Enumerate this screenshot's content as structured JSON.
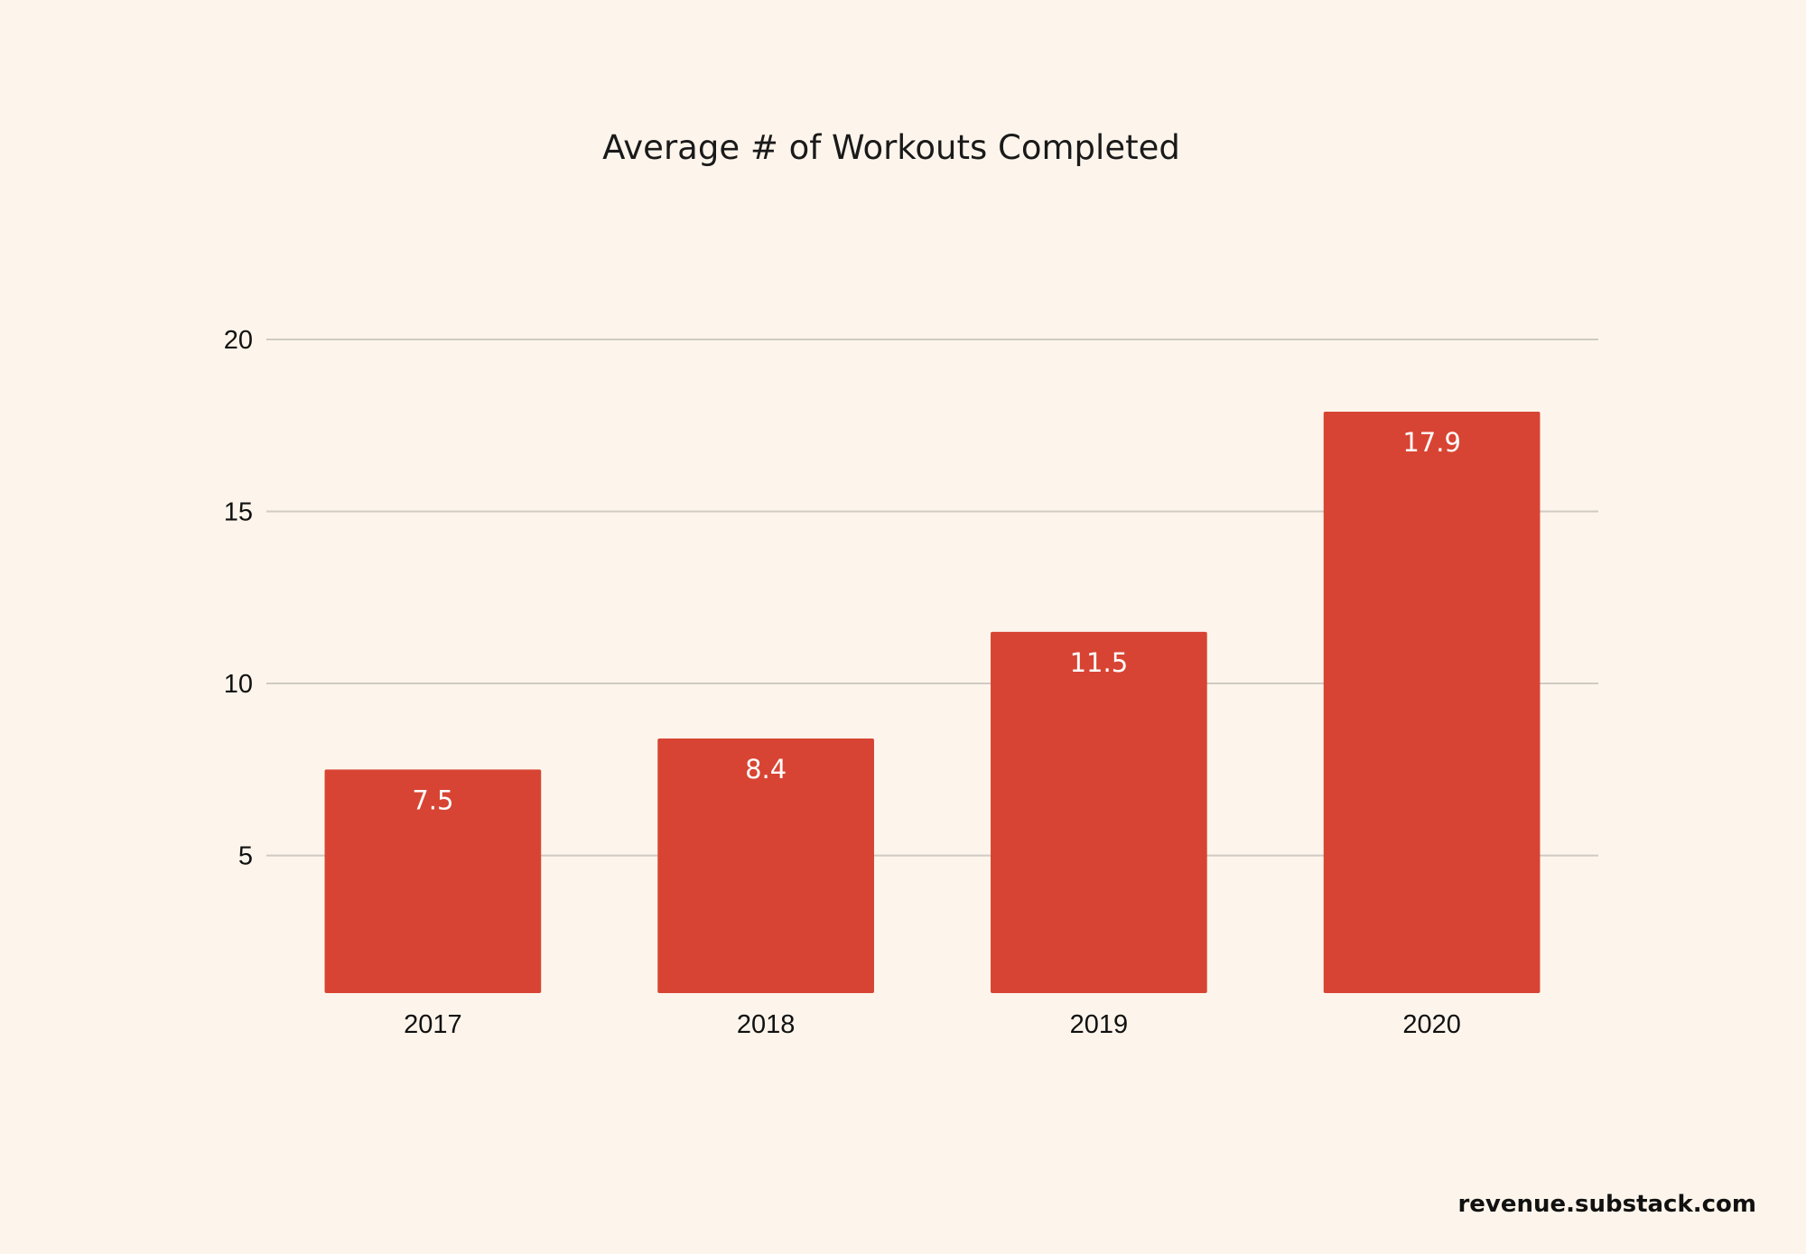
{
  "chart_data": {
    "type": "bar",
    "title": "Average # of Workouts Completed",
    "xlabel": "",
    "ylabel": "",
    "categories": [
      "2017",
      "2018",
      "2019",
      "2020"
    ],
    "values": [
      7.5,
      8.4,
      11.5,
      17.9
    ],
    "data_labels": [
      "7.5",
      "8.4",
      "11.5",
      "17.9"
    ],
    "y_ticks": [
      5,
      10,
      15,
      20
    ],
    "y_tick_labels": [
      "5",
      "10",
      "15",
      "20"
    ],
    "ylim": [
      1,
      20
    ],
    "grid": true,
    "legend": "none",
    "bar_color": "#d84433"
  },
  "footer": {
    "source": "revenue.substack.com"
  }
}
